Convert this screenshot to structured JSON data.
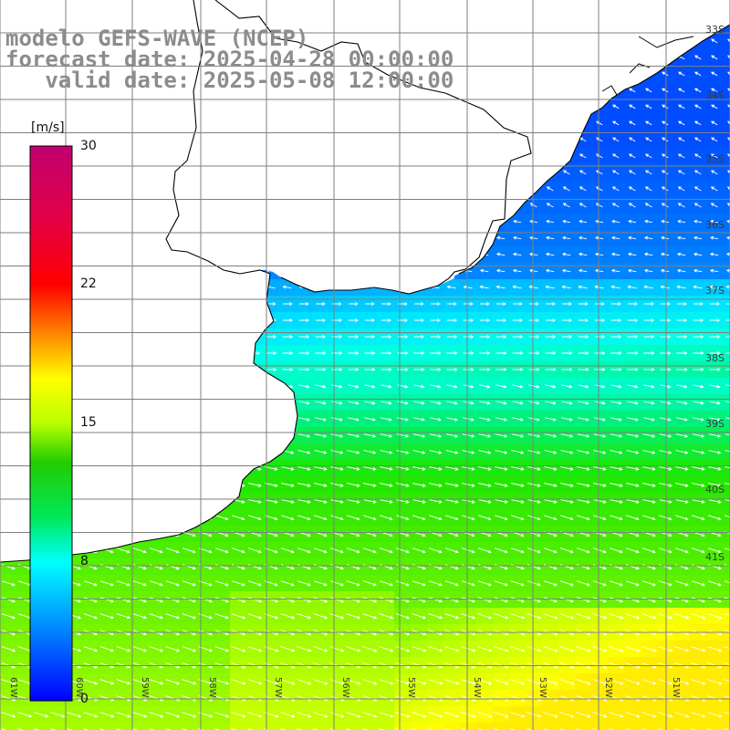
{
  "title": {
    "line1": "modelo GEFS-WAVE (NCEP)",
    "line2": "forecast date: 2025-04-28 00:00:00",
    "line3": "   valid date: 2025-05-08 12:00:00"
  },
  "colorbar": {
    "unit": "[m/s]",
    "min": 0,
    "max": 30,
    "ticks": [
      {
        "value": 30,
        "label": "30"
      },
      {
        "value": 22,
        "label": "22"
      },
      {
        "value": 15,
        "label": "15"
      },
      {
        "value": 8,
        "label": "8"
      },
      {
        "value": 0,
        "label": "0"
      }
    ]
  },
  "latitude_labels": [
    "33S",
    "34S",
    "35S",
    "36S",
    "37S",
    "38S",
    "39S",
    "40S",
    "41S"
  ],
  "longitude_labels": [
    "61W",
    "60W",
    "59W",
    "58W",
    "57W",
    "56W",
    "55W",
    "54W",
    "53W",
    "52W",
    "51W"
  ],
  "colors": {
    "land": "#ffffff",
    "coastline": "#000000",
    "grid": "#7f7f7f",
    "arrow": "#ffffff",
    "title": "#8c8c8c"
  },
  "wind_field": {
    "variable": "wind speed",
    "units": "m/s",
    "description_rows": [
      {
        "region": "north (33S-34S)",
        "speed_range": "3-5",
        "direction": "southeasterly, arrows pointing NW"
      },
      {
        "region": "36S",
        "speed_range": "6-8",
        "direction": "westerly, arrows pointing E"
      },
      {
        "region": "38S-40S",
        "speed_range": "10-14",
        "direction": "westerly, arrows pointing E/SE"
      },
      {
        "region": "southeast corner (40.5S, 53W-51W)",
        "speed_range": "15-17",
        "direction": "westerly"
      }
    ]
  }
}
